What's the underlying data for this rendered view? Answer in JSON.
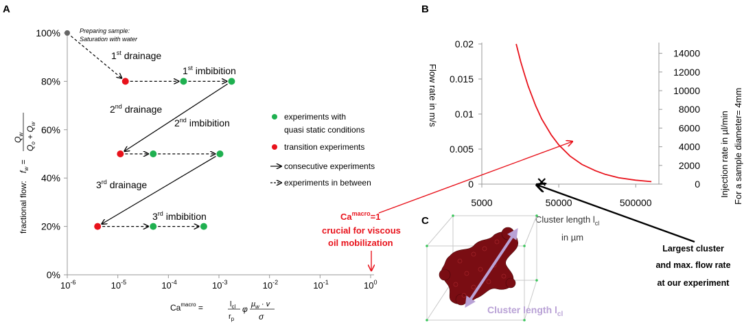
{
  "panel_labels": {
    "a": "A",
    "b": "B",
    "c": "C"
  },
  "colors": {
    "red": "#e8121b",
    "green": "#1fb050",
    "gray": "#666666",
    "lavender": "#b9a2d6",
    "cluster": "#7a0d13"
  },
  "chart_data": [
    {
      "type": "scatter",
      "id": "panel-a",
      "ylabel": "fractional flow:",
      "ylabel_formula": "f_w = Q_w / (Q_o + Q_w)",
      "xlabel": "Ca^macro = (l_cl / r_p) φ (μ_w · v / σ)",
      "x_scale": "log",
      "xlim_exp": [
        -6,
        0
      ],
      "x_ticks": [
        {
          "base": "10",
          "exp": "-6",
          "value": -6
        },
        {
          "base": "10",
          "exp": "-5",
          "value": -5
        },
        {
          "base": "10",
          "exp": "-4",
          "value": -4
        },
        {
          "base": "10",
          "exp": "-3",
          "value": -3
        },
        {
          "base": "10",
          "exp": "-2",
          "value": -2
        },
        {
          "base": "10",
          "exp": "-1",
          "value": -1
        },
        {
          "base": "10",
          "exp": "0",
          "value": 0
        }
      ],
      "ylim": [
        0,
        100
      ],
      "y_ticks": [
        {
          "label": "0%",
          "value": 0
        },
        {
          "label": "20%",
          "value": 20
        },
        {
          "label": "40%",
          "value": 40
        },
        {
          "label": "60%",
          "value": 60
        },
        {
          "label": "80%",
          "value": 80
        },
        {
          "label": "100%",
          "value": 100
        }
      ],
      "points": [
        {
          "name": "start",
          "log_x": -6,
          "y": 100,
          "kind": "initial"
        },
        {
          "name": "p1",
          "log_x": -4.85,
          "y": 80,
          "kind": "transition"
        },
        {
          "name": "p2",
          "log_x": -3.7,
          "y": 80,
          "kind": "quasi-static"
        },
        {
          "name": "p3",
          "log_x": -2.75,
          "y": 80,
          "kind": "quasi-static"
        },
        {
          "name": "p4",
          "log_x": -4.95,
          "y": 50,
          "kind": "transition"
        },
        {
          "name": "p5",
          "log_x": -4.3,
          "y": 50,
          "kind": "quasi-static"
        },
        {
          "name": "p6",
          "log_x": -2.98,
          "y": 50,
          "kind": "quasi-static"
        },
        {
          "name": "p7",
          "log_x": -5.4,
          "y": 20,
          "kind": "transition"
        },
        {
          "name": "p8",
          "log_x": -4.3,
          "y": 20,
          "kind": "quasi-static"
        },
        {
          "name": "p9",
          "log_x": -3.3,
          "y": 20,
          "kind": "quasi-static"
        }
      ],
      "arrows": [
        {
          "from": "start",
          "to": "p1",
          "style": "dashed"
        },
        {
          "from": "p1",
          "to": "p2",
          "style": "dashed"
        },
        {
          "from": "p2",
          "to": "p3",
          "style": "dashed"
        },
        {
          "from": "p3",
          "to": "p4",
          "style": "solid"
        },
        {
          "from": "p4",
          "to": "p5",
          "style": "dashed"
        },
        {
          "from": "p5",
          "to": "p6",
          "style": "dashed"
        },
        {
          "from": "p6",
          "to": "p7",
          "style": "solid"
        },
        {
          "from": "p7",
          "to": "p8",
          "style": "dashed"
        },
        {
          "from": "p8",
          "to": "p9",
          "style": "dashed"
        }
      ],
      "annotations": {
        "preparing_line1": "Preparing sample:",
        "preparing_line2": "Saturation with water",
        "drainage1": {
          "pre": "1",
          "sup": "st",
          "post": " drainage"
        },
        "imbibition1": {
          "pre": "1",
          "sup": "st",
          "post": " imbibition"
        },
        "drainage2": {
          "pre": "2",
          "sup": "nd",
          "post": " drainage"
        },
        "imbibition2": {
          "pre": "2",
          "sup": "nd",
          "post": " imbibition"
        },
        "drainage3": {
          "pre": "3",
          "sup": "rd",
          "post": " drainage"
        },
        "imbibition3": {
          "pre": "3",
          "sup": "rd",
          "post": " imbibition"
        }
      },
      "legend": {
        "quasi_static_line1": "experiments with",
        "quasi_static_line2": "quasi static conditions",
        "transition": "transition experiments",
        "consecutive": "consecutive experiments",
        "in_between": "experiments in between"
      },
      "callout": {
        "ca_base": "Ca",
        "ca_sup": "macro",
        "ca_suffix": "=1",
        "line2": "crucial for viscous",
        "line3": "oil mobilization"
      }
    },
    {
      "type": "line",
      "id": "panel-b",
      "ylabel": "Flow rate in m/s",
      "y2label_line1": "Injection rate in µl/min",
      "y2label_line2": "For a sample diameter= 4mm",
      "xlabel_line1": "Cluster length l",
      "xlabel_sub": "cl",
      "xlabel_line2": "in µm",
      "x_scale": "log",
      "xlim": [
        5000,
        1000000
      ],
      "x_tick_labels": [
        "5000",
        "50000",
        "500000"
      ],
      "x_tick_values": [
        5000,
        50000,
        500000
      ],
      "ylim": [
        0,
        0.02
      ],
      "y_ticks": [
        {
          "label": "0",
          "value": 0
        },
        {
          "label": "0.005",
          "value": 0.005
        },
        {
          "label": "0.01",
          "value": 0.01
        },
        {
          "label": "0.015",
          "value": 0.015
        },
        {
          "label": "0.02",
          "value": 0.02
        }
      ],
      "y2lim": [
        0,
        15000
      ],
      "y2_ticks": [
        {
          "label": "0",
          "value": 0
        },
        {
          "label": "2000",
          "value": 2000
        },
        {
          "label": "4000",
          "value": 4000
        },
        {
          "label": "6000",
          "value": 6000
        },
        {
          "label": "8000",
          "value": 8000
        },
        {
          "label": "10000",
          "value": 10000
        },
        {
          "label": "12000",
          "value": 12000
        },
        {
          "label": "14000",
          "value": 14000
        }
      ],
      "curve": {
        "x": [
          14000,
          16000,
          18000,
          20000,
          25000,
          30000,
          40000,
          50000,
          70000,
          100000,
          150000,
          200000,
          300000,
          500000,
          800000
        ],
        "y": [
          0.02,
          0.0175,
          0.0156,
          0.014,
          0.0112,
          0.0093,
          0.007,
          0.0056,
          0.004,
          0.0028,
          0.0019,
          0.0014,
          0.0009,
          0.00056,
          0.00035
        ]
      },
      "marker": {
        "x": 30000,
        "y": 0,
        "symbol": "x"
      },
      "callout": {
        "line1": "Largest cluster",
        "line2": "and max. flow rate",
        "line3": "at our experiment"
      }
    }
  ],
  "panel_c": {
    "label_text": "Cluster length l",
    "label_sub": "cl"
  }
}
